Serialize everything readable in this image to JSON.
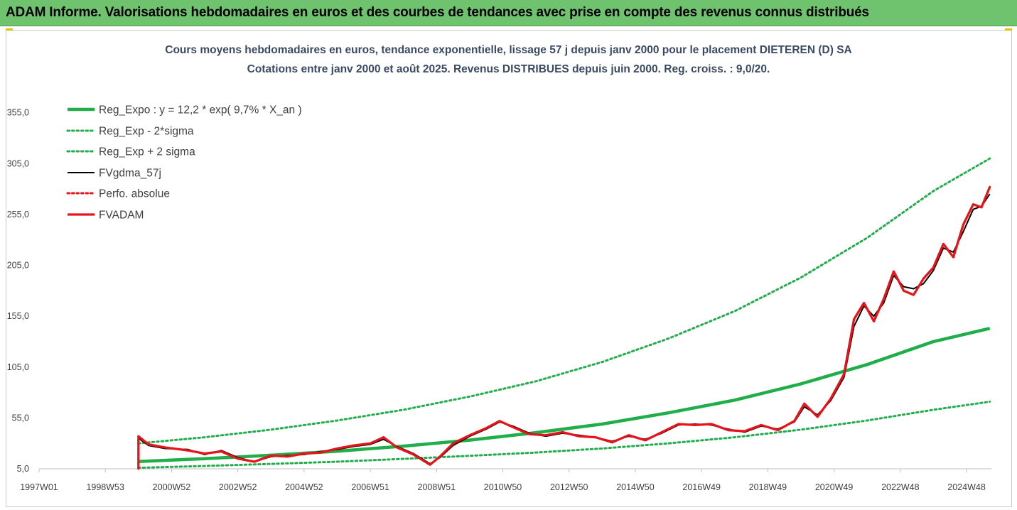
{
  "header": {
    "title": "ADAM Informe. Valorisations hebdomadaires en euros et des courbes de tendances avec prise en compte des revenus connus distribués"
  },
  "colors": {
    "banner": "#6fc36f",
    "regression": "#1fae49",
    "bands": "#1fae49",
    "smooth": "#000000",
    "perf": "#e8141b",
    "fvadam": "#e8141b"
  },
  "chart_data": {
    "type": "line",
    "title": "Cours moyens hebdomadaires en euros, tendance exponentielle, lissage 57 j depuis janv 2000 pour le placement DIETEREN (D) SA",
    "subtitle": "Cotations entre janv 2000 et août 2025. Revenus DISTRIBUES depuis juin 2000. Reg. croiss. : 9,0/20.",
    "xlabel": "",
    "ylabel": "",
    "x_range": [
      1997.0,
      2025.75
    ],
    "ylim": [
      5,
      375
    ],
    "y_ticks": [
      "5,0",
      "55,0",
      "105,0",
      "155,0",
      "205,0",
      "255,0",
      "305,0",
      "355,0"
    ],
    "y_tick_values": [
      5,
      55,
      105,
      155,
      205,
      255,
      305,
      355
    ],
    "x_ticks": [
      "1997W01",
      "1998W53",
      "2000W52",
      "2002W52",
      "2004W52",
      "2006W51",
      "2008W51",
      "2010W50",
      "2012W50",
      "2014W50",
      "2016W49",
      "2018W49",
      "2020W49",
      "2022W48",
      "2024W48"
    ],
    "x_tick_values": [
      1997.0,
      1999.0,
      2001.0,
      2003.0,
      2005.0,
      2007.0,
      2009.0,
      2011.0,
      2013.0,
      2015.0,
      2017.0,
      2019.0,
      2021.0,
      2023.0,
      2025.0
    ],
    "grid": false,
    "legend_position": "top-left",
    "series": [
      {
        "name": "Reg_Expo : y = 12,2 * exp( 9,7% *  X_an )",
        "style": "solid-thick",
        "color": "#1fae49",
        "x": [
          2000.0,
          2002.0,
          2004.0,
          2006.0,
          2008.0,
          2010.0,
          2012.0,
          2014.0,
          2016.0,
          2018.0,
          2020.0,
          2022.0,
          2024.0,
          2025.7
        ],
        "values": [
          12.2,
          15.0,
          18.3,
          22.3,
          27.3,
          33.2,
          40.5,
          49.0,
          60.0,
          72.5,
          88.5,
          107.5,
          130.0,
          143.0
        ]
      },
      {
        "name": "Reg_Exp - 2*sigma",
        "style": "dotted",
        "color": "#1fae49",
        "x": [
          2000.0,
          2002.0,
          2004.0,
          2006.0,
          2008.0,
          2010.0,
          2012.0,
          2014.0,
          2016.0,
          2018.0,
          2020.0,
          2022.0,
          2024.0,
          2025.7
        ],
        "values": [
          6.0,
          7.8,
          9.8,
          12.0,
          14.8,
          17.8,
          21.0,
          25.0,
          30.0,
          36.0,
          43.5,
          52.5,
          63.0,
          71.0
        ]
      },
      {
        "name": "Reg_Exp + 2 sigma",
        "style": "dotted",
        "color": "#1fae49",
        "x": [
          2000.0,
          2002.0,
          2004.0,
          2006.0,
          2008.0,
          2010.0,
          2012.0,
          2014.0,
          2016.0,
          2018.0,
          2020.0,
          2022.0,
          2024.0,
          2025.7
        ],
        "values": [
          30.0,
          36.0,
          43.5,
          52.5,
          63.0,
          76.0,
          91.0,
          110.0,
          133.0,
          160.0,
          193.0,
          232.0,
          278.0,
          310.0
        ]
      },
      {
        "name": "FVgdma_57j",
        "style": "solid",
        "color": "#000000",
        "x": [
          2000.0,
          2000.3,
          2000.8,
          2001.5,
          2002.0,
          2002.5,
          2003.0,
          2003.5,
          2004.0,
          2004.5,
          2005.0,
          2005.5,
          2006.0,
          2006.5,
          2007.0,
          2007.4,
          2007.8,
          2008.3,
          2008.8,
          2009.1,
          2009.5,
          2010.0,
          2010.5,
          2010.9,
          2011.3,
          2011.8,
          2012.3,
          2012.8,
          2013.3,
          2013.8,
          2014.3,
          2014.8,
          2015.3,
          2015.8,
          2016.3,
          2016.8,
          2017.3,
          2017.8,
          2018.3,
          2018.8,
          2019.3,
          2019.8,
          2020.1,
          2020.5,
          2020.9,
          2021.3,
          2021.6,
          2021.9,
          2022.2,
          2022.5,
          2022.8,
          2023.1,
          2023.4,
          2023.7,
          2024.0,
          2024.3,
          2024.6,
          2024.9,
          2025.2,
          2025.45,
          2025.7
        ],
        "values": [
          35.0,
          28.0,
          25.0,
          24.0,
          19.0,
          23.0,
          16.0,
          12.0,
          17.0,
          18.0,
          19.0,
          22.0,
          24.0,
          27.0,
          29.0,
          34.0,
          27.0,
          20.0,
          10.0,
          16.0,
          28.0,
          37.0,
          44.0,
          51.0,
          47.0,
          40.0,
          37.0,
          40.0,
          38.0,
          36.0,
          32.0,
          37.0,
          34.0,
          40.0,
          48.0,
          49.0,
          48.0,
          44.0,
          41.0,
          47.0,
          44.0,
          51.0,
          66.0,
          58.0,
          72.0,
          95.0,
          145.0,
          165.0,
          155.0,
          168.0,
          195.0,
          184.0,
          182.0,
          187.0,
          200.0,
          222.0,
          218.0,
          238.0,
          260.0,
          263.0,
          275.0
        ]
      },
      {
        "name": "Perfo. absolue",
        "style": "dotted",
        "color": "#e8141b",
        "x": [
          2000.0,
          2000.3,
          2000.8,
          2001.5,
          2002.0,
          2002.5,
          2003.0,
          2003.5,
          2004.0,
          2004.5,
          2005.0,
          2005.5,
          2006.0,
          2006.5,
          2007.0,
          2007.4,
          2007.8,
          2008.3,
          2008.8,
          2009.1,
          2009.5,
          2010.0,
          2010.5,
          2010.9,
          2011.3,
          2011.8,
          2012.3,
          2012.8,
          2013.3,
          2013.8,
          2014.3,
          2014.8,
          2015.3,
          2015.8,
          2016.3,
          2016.8,
          2017.3,
          2017.8,
          2018.3,
          2018.8,
          2019.3,
          2019.8,
          2020.1,
          2020.5,
          2020.9,
          2021.3,
          2021.6,
          2021.9,
          2022.2,
          2022.5,
          2022.8,
          2023.1,
          2023.4,
          2023.7,
          2024.0,
          2024.3,
          2024.6,
          2024.9,
          2025.2,
          2025.45,
          2025.7
        ],
        "values": [
          37.0,
          29.0,
          26.0,
          23.0,
          20.0,
          22.0,
          15.0,
          12.0,
          18.0,
          17.0,
          20.0,
          21.0,
          25.0,
          28.0,
          30.0,
          36.0,
          26.0,
          19.0,
          9.0,
          17.0,
          30.0,
          38.0,
          45.0,
          52.0,
          46.0,
          39.0,
          38.0,
          41.0,
          37.0,
          36.0,
          31.0,
          38.0,
          33.0,
          41.0,
          49.0,
          48.0,
          49.0,
          43.0,
          42.0,
          48.0,
          43.0,
          52.0,
          69.0,
          56.0,
          74.0,
          98.0,
          152.0,
          168.0,
          150.0,
          172.0,
          199.0,
          180.0,
          176.0,
          192.0,
          203.0,
          226.0,
          213.0,
          245.0,
          265.0,
          262.0,
          282.0
        ]
      },
      {
        "name": "FVADAM",
        "style": "solid-thick",
        "color": "#e8141b",
        "x": [
          2000.0,
          2000.3,
          2000.8,
          2001.5,
          2002.0,
          2002.5,
          2003.0,
          2003.5,
          2004.0,
          2004.5,
          2005.0,
          2005.5,
          2006.0,
          2006.5,
          2007.0,
          2007.4,
          2007.8,
          2008.3,
          2008.8,
          2009.1,
          2009.5,
          2010.0,
          2010.5,
          2010.9,
          2011.3,
          2011.8,
          2012.3,
          2012.8,
          2013.3,
          2013.8,
          2014.3,
          2014.8,
          2015.3,
          2015.8,
          2016.3,
          2016.8,
          2017.3,
          2017.8,
          2018.3,
          2018.8,
          2019.3,
          2019.8,
          2020.1,
          2020.5,
          2020.9,
          2021.3,
          2021.6,
          2021.9,
          2022.2,
          2022.5,
          2022.8,
          2023.1,
          2023.4,
          2023.7,
          2024.0,
          2024.3,
          2024.6,
          2024.9,
          2025.2,
          2025.45,
          2025.7
        ],
        "values": [
          37.0,
          29.0,
          26.0,
          23.0,
          20.0,
          22.0,
          15.0,
          12.0,
          18.0,
          17.0,
          20.0,
          21.0,
          25.0,
          28.0,
          30.0,
          36.0,
          26.0,
          19.0,
          9.0,
          17.0,
          30.0,
          38.0,
          45.0,
          52.0,
          46.0,
          39.0,
          38.0,
          41.0,
          37.0,
          36.0,
          31.0,
          38.0,
          33.0,
          41.0,
          49.0,
          48.0,
          49.0,
          43.0,
          42.0,
          48.0,
          43.0,
          52.0,
          69.0,
          56.0,
          74.0,
          98.0,
          152.0,
          168.0,
          150.0,
          172.0,
          199.0,
          180.0,
          176.0,
          192.0,
          203.0,
          226.0,
          213.0,
          245.0,
          265.0,
          262.0,
          282.0
        ]
      }
    ]
  }
}
